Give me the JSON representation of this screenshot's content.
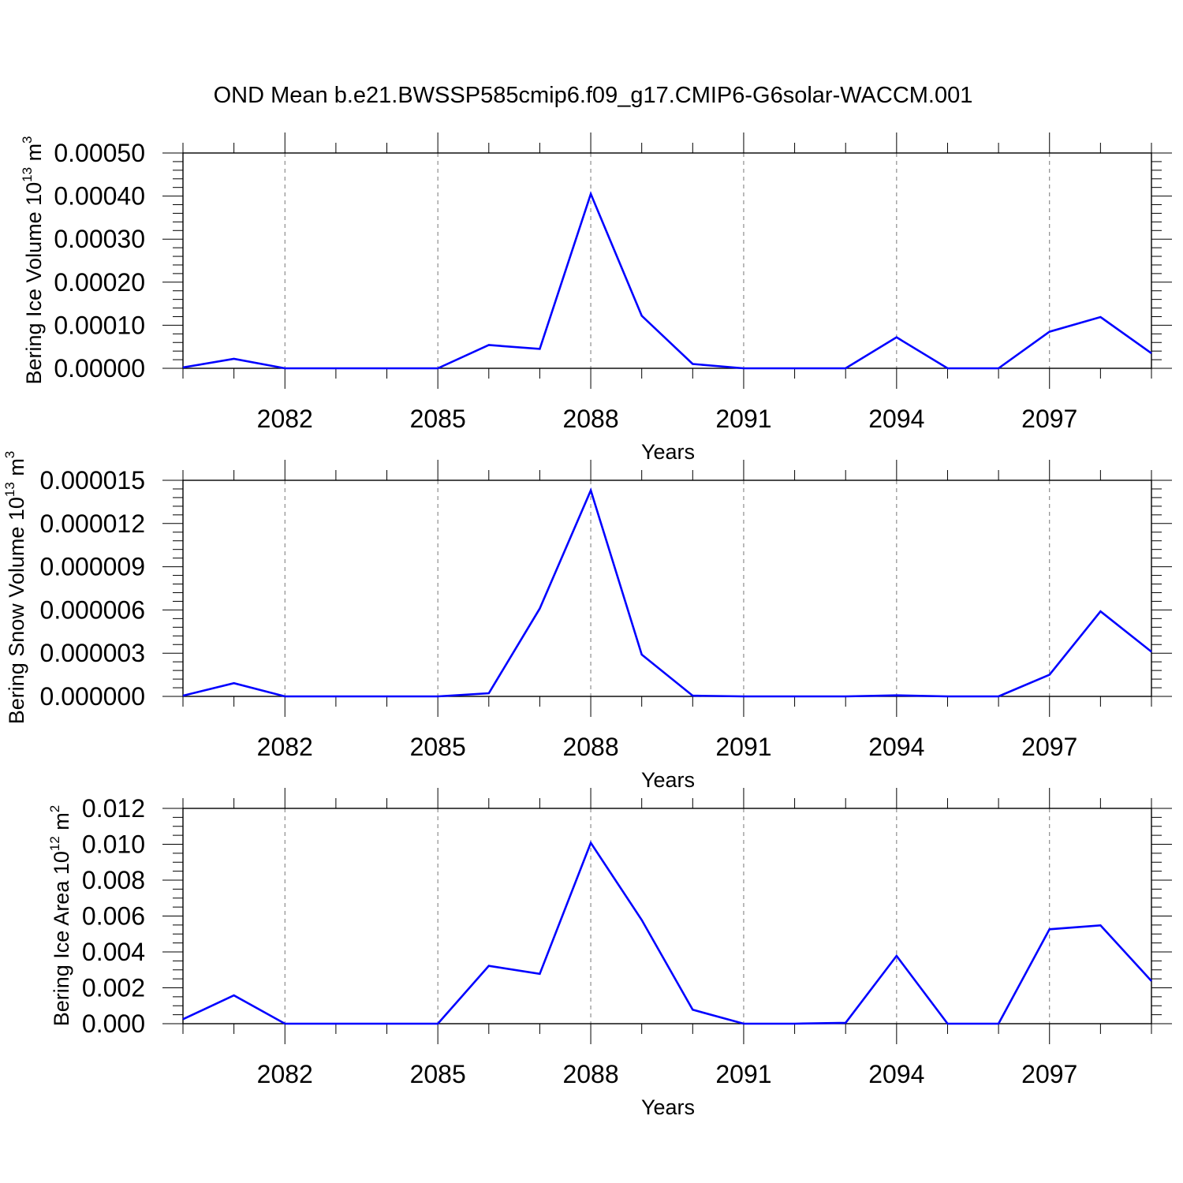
{
  "title": "OND Mean b.e21.BWSSP585cmip6.f09_g17.CMIP6-G6solar-WACCM.001",
  "colors": {
    "line": "#0000ff",
    "axis": "#000000",
    "grid": "#777777"
  },
  "chart_data": [
    {
      "type": "line",
      "ylabel": "Bering Ice Volume 10",
      "ylabel_exp": "13",
      "ylabel_unit": " m",
      "ylabel_unit_exp": "3",
      "xlabel": "Years",
      "xlim": [
        2080,
        2099
      ],
      "ylim": [
        0,
        0.0005
      ],
      "yticks": [
        "0.00000",
        "0.00010",
        "0.00020",
        "0.00030",
        "0.00040",
        "0.00050"
      ],
      "ytick_values": [
        0,
        0.0001,
        0.0002,
        0.0003,
        0.0004,
        0.0005
      ],
      "xticks": [
        "2082",
        "2085",
        "2088",
        "2091",
        "2094",
        "2097"
      ],
      "xtick_values": [
        2082,
        2085,
        2088,
        2091,
        2094,
        2097
      ],
      "grid": "vertical dashed at major x ticks",
      "x": [
        2080,
        2081,
        2082,
        2083,
        2084,
        2085,
        2086,
        2087,
        2088,
        2089,
        2090,
        2091,
        2092,
        2093,
        2094,
        2095,
        2096,
        2097,
        2098,
        2099
      ],
      "series": [
        {
          "values": [
            2e-06,
            2.2e-05,
            0,
            0,
            0,
            0,
            5.4e-05,
            4.5e-05,
            0.000405,
            0.000122,
            1e-05,
            0,
            0,
            0,
            7.2e-05,
            0,
            0,
            8.5e-05,
            0.000119,
            3.5e-05
          ]
        }
      ]
    },
    {
      "type": "line",
      "ylabel": "Bering Snow Volume 10",
      "ylabel_exp": "13",
      "ylabel_unit": " m",
      "ylabel_unit_exp": "3",
      "xlabel": "Years",
      "xlim": [
        2080,
        2099
      ],
      "ylim": [
        0,
        1.5e-05
      ],
      "yticks": [
        "0.000000",
        "0.000003",
        "0.000006",
        "0.000009",
        "0.000012",
        "0.000015"
      ],
      "ytick_values": [
        0,
        3e-06,
        6e-06,
        9e-06,
        1.2e-05,
        1.5e-05
      ],
      "xticks": [
        "2082",
        "2085",
        "2088",
        "2091",
        "2094",
        "2097"
      ],
      "xtick_values": [
        2082,
        2085,
        2088,
        2091,
        2094,
        2097
      ],
      "grid": "vertical dashed at major x ticks",
      "x": [
        2080,
        2081,
        2082,
        2083,
        2084,
        2085,
        2086,
        2087,
        2088,
        2089,
        2090,
        2091,
        2092,
        2093,
        2094,
        2095,
        2096,
        2097,
        2098,
        2099
      ],
      "series": [
        {
          "values": [
            5e-08,
            9.2e-07,
            0,
            0,
            0,
            0,
            2.2e-07,
            6.1e-06,
            1.43e-05,
            2.9e-06,
            5e-08,
            0,
            0,
            0,
            7e-08,
            0,
            0,
            1.5e-06,
            5.9e-06,
            3.1e-06
          ]
        }
      ]
    },
    {
      "type": "line",
      "ylabel": "Bering Ice Area 10",
      "ylabel_exp": "12",
      "ylabel_unit": " m",
      "ylabel_unit_exp": "2",
      "xlabel": "Years",
      "xlim": [
        2080,
        2099
      ],
      "ylim": [
        0,
        0.012
      ],
      "yticks": [
        "0.000",
        "0.002",
        "0.004",
        "0.006",
        "0.008",
        "0.010",
        "0.012"
      ],
      "ytick_values": [
        0,
        0.002,
        0.004,
        0.006,
        0.008,
        0.01,
        0.012
      ],
      "xticks": [
        "2082",
        "2085",
        "2088",
        "2091",
        "2094",
        "2097"
      ],
      "xtick_values": [
        2082,
        2085,
        2088,
        2091,
        2094,
        2097
      ],
      "grid": "vertical dashed at major x ticks",
      "x": [
        2080,
        2081,
        2082,
        2083,
        2084,
        2085,
        2086,
        2087,
        2088,
        2089,
        2090,
        2091,
        2092,
        2093,
        2094,
        2095,
        2096,
        2097,
        2098,
        2099
      ],
      "series": [
        {
          "values": [
            0.00025,
            0.00158,
            0,
            0,
            0,
            0,
            0.00322,
            0.00278,
            0.01008,
            0.00578,
            0.00078,
            0,
            0,
            5e-05,
            0.00378,
            0,
            0,
            0.00526,
            0.00548,
            0.00238
          ]
        }
      ]
    }
  ]
}
